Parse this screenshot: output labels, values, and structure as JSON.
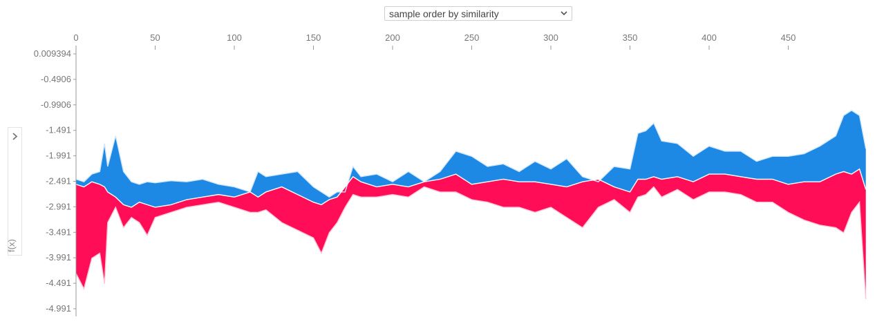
{
  "controls": {
    "order_select": {
      "selected": "sample order by similarity",
      "icon": "chevron-down-icon"
    },
    "side_toggle_icon": "chevron-right-icon",
    "ylabel": "f(x)"
  },
  "colors": {
    "positive": "#ff0d57",
    "negative": "#1e88e5",
    "positive_edge": "#ffc3d5",
    "negative_edge": "#d1e6fa",
    "axis": "#999999",
    "tick_text": "#777777"
  },
  "chart_data": {
    "type": "area",
    "xlabel": "",
    "ylabel": "f(x)",
    "x_ticks": [
      "0",
      "50",
      "100",
      "150",
      "200",
      "250",
      "300",
      "350",
      "400",
      "450"
    ],
    "y_ticks": [
      "0.009394",
      "-0.4906",
      "-0.9906",
      "-1.491",
      "-1.991",
      "-2.491",
      "-2.991",
      "-3.491",
      "-3.991",
      "-4.491",
      "-4.991"
    ],
    "xlim": [
      0,
      500
    ],
    "ylim": [
      -5.1,
      0.15
    ],
    "grid": false,
    "description_of_series": [
      {
        "name": "",
        "color": "#ff0d57"
      },
      {
        "name": "",
        "color": "#1e88e5"
      }
    ],
    "x": [
      0,
      5,
      10,
      15,
      18,
      20,
      25,
      30,
      35,
      40,
      45,
      50,
      60,
      70,
      80,
      90,
      100,
      110,
      115,
      120,
      130,
      140,
      150,
      155,
      160,
      165,
      170,
      175,
      180,
      190,
      200,
      210,
      220,
      230,
      240,
      250,
      260,
      270,
      280,
      290,
      300,
      310,
      320,
      330,
      340,
      350,
      355,
      360,
      365,
      370,
      380,
      390,
      400,
      410,
      420,
      430,
      440,
      450,
      460,
      470,
      480,
      485,
      490,
      495,
      499
    ],
    "upper": [
      -2.45,
      -2.5,
      -2.35,
      -2.3,
      -1.75,
      -2.2,
      -1.6,
      -2.3,
      -2.5,
      -2.55,
      -2.5,
      -2.52,
      -2.48,
      -2.5,
      -2.45,
      -2.55,
      -2.6,
      -2.7,
      -2.3,
      -2.4,
      -2.35,
      -2.3,
      -2.6,
      -2.7,
      -2.8,
      -2.7,
      -2.7,
      -2.2,
      -2.4,
      -2.35,
      -2.5,
      -2.3,
      -2.5,
      -2.3,
      -1.9,
      -2.0,
      -2.2,
      -2.15,
      -2.3,
      -2.1,
      -2.25,
      -2.05,
      -2.4,
      -2.5,
      -2.2,
      -2.25,
      -1.55,
      -1.5,
      -1.35,
      -1.7,
      -1.75,
      -2.0,
      -1.8,
      -1.9,
      -1.9,
      -2.1,
      -2.0,
      -2.0,
      -1.95,
      -1.8,
      -1.6,
      -1.2,
      -1.1,
      -1.2,
      -1.85
    ],
    "mid": [
      -2.55,
      -2.6,
      -2.5,
      -2.55,
      -2.6,
      -2.7,
      -2.8,
      -2.95,
      -3.0,
      -2.9,
      -2.95,
      -3.0,
      -2.95,
      -2.85,
      -2.8,
      -2.75,
      -2.8,
      -2.7,
      -2.8,
      -2.7,
      -2.6,
      -2.75,
      -2.9,
      -2.95,
      -2.85,
      -2.8,
      -2.6,
      -2.4,
      -2.5,
      -2.6,
      -2.55,
      -2.6,
      -2.5,
      -2.45,
      -2.35,
      -2.55,
      -2.5,
      -2.45,
      -2.5,
      -2.5,
      -2.55,
      -2.6,
      -2.5,
      -2.45,
      -2.6,
      -2.7,
      -2.45,
      -2.45,
      -2.4,
      -2.45,
      -2.4,
      -2.5,
      -2.35,
      -2.35,
      -2.4,
      -2.45,
      -2.45,
      -2.55,
      -2.5,
      -2.5,
      -2.35,
      -2.3,
      -2.35,
      -2.25,
      -2.65
    ],
    "lower": [
      -4.3,
      -4.6,
      -4.0,
      -3.9,
      -4.5,
      -3.3,
      -3.0,
      -3.4,
      -3.2,
      -3.3,
      -3.55,
      -3.2,
      -3.1,
      -3.0,
      -2.95,
      -2.9,
      -3.0,
      -3.1,
      -3.1,
      -3.05,
      -3.3,
      -3.45,
      -3.6,
      -3.9,
      -3.5,
      -3.3,
      -3.0,
      -2.75,
      -2.8,
      -2.8,
      -2.75,
      -2.8,
      -2.6,
      -2.7,
      -2.7,
      -2.85,
      -2.9,
      -3.0,
      -3.0,
      -3.1,
      -3.0,
      -3.2,
      -3.4,
      -3.0,
      -2.85,
      -3.1,
      -2.8,
      -2.75,
      -2.6,
      -2.8,
      -2.65,
      -2.85,
      -2.7,
      -2.7,
      -2.75,
      -2.9,
      -2.9,
      -3.1,
      -3.25,
      -3.35,
      -3.4,
      -3.5,
      -3.1,
      -2.9,
      -4.8
    ]
  }
}
